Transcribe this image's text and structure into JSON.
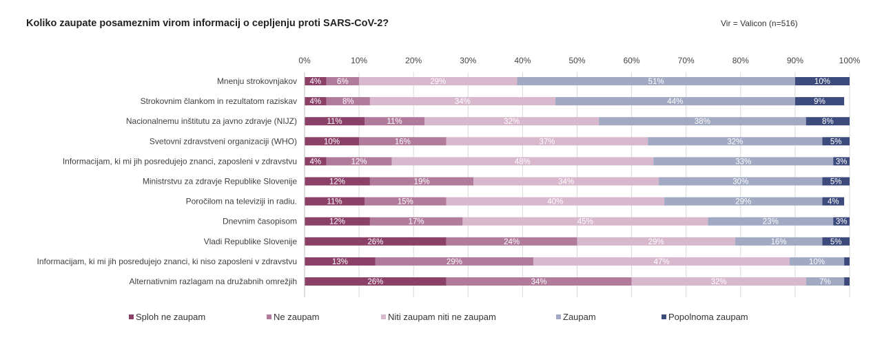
{
  "chart_data": {
    "type": "bar",
    "orientation": "horizontal-stacked-100",
    "title": "Koliko zaupate posameznim virom informacij o cepljenju proti SARS-CoV-2?",
    "source": "Vir = Valicon (n=516)",
    "xlim": [
      0,
      100
    ],
    "ticks": [
      "0%",
      "10%",
      "20%",
      "30%",
      "40%",
      "50%",
      "60%",
      "70%",
      "80%",
      "90%",
      "100%"
    ],
    "categories": [
      "Mnenju strokovnjakov",
      "Strokovnim člankom in rezultatom raziskav",
      "Nacionalnemu inštitutu za javno zdravje (NIJZ)",
      "Svetovni zdravstveni organizaciji (WHO)",
      "Informacijam, ki mi jih posredujejo znanci, zaposleni v zdravstvu",
      "Ministrstvu za zdravje Republike Slovenije",
      "Poročilom na televiziji in radiu.",
      "Dnevnim časopisom",
      "Vladi Republike Slovenije",
      "Informacijam, ki mi jih posredujejo znanci, ki niso zaposleni v zdravstvu",
      "Alternativnim razlagam na družabnih omrežjih"
    ],
    "series": [
      {
        "name": "Sploh ne zaupam",
        "color": "#8b4068",
        "values": [
          4,
          4,
          11,
          10,
          4,
          12,
          11,
          12,
          26,
          13,
          26
        ]
      },
      {
        "name": "Ne zaupam",
        "color": "#b17c9c",
        "values": [
          6,
          8,
          11,
          16,
          12,
          19,
          15,
          17,
          24,
          29,
          34
        ]
      },
      {
        "name": "Niti zaupam niti ne zaupam",
        "color": "#d8b8cc",
        "values": [
          29,
          34,
          32,
          37,
          48,
          34,
          40,
          45,
          29,
          47,
          32
        ]
      },
      {
        "name": "Zaupam",
        "color": "#a2a9c2",
        "values": [
          51,
          44,
          38,
          32,
          33,
          30,
          29,
          23,
          16,
          10,
          7
        ]
      },
      {
        "name": "Popolnoma zaupam",
        "color": "#3c4a7c",
        "values": [
          10,
          9,
          8,
          5,
          3,
          5,
          4,
          3,
          5,
          1,
          1
        ]
      }
    ],
    "labels": [
      [
        "4%",
        "6%",
        "29%",
        "51%",
        "10%"
      ],
      [
        "4%",
        "8%",
        "34%",
        "44%",
        "9%"
      ],
      [
        "11%",
        "11%",
        "32%",
        "38%",
        "8%"
      ],
      [
        "10%",
        "16%",
        "37%",
        "32%",
        "5%"
      ],
      [
        "4%",
        "12%",
        "48%",
        "33%",
        "3%"
      ],
      [
        "12%",
        "19%",
        "34%",
        "30%",
        "5%"
      ],
      [
        "11%",
        "15%",
        "40%",
        "29%",
        "4%"
      ],
      [
        "12%",
        "17%",
        "45%",
        "23%",
        "3%"
      ],
      [
        "26%",
        "24%",
        "29%",
        "16%",
        "5%"
      ],
      [
        "13%",
        "29%",
        "47%",
        "10%",
        ""
      ],
      [
        "26%",
        "34%",
        "32%",
        "7%",
        ""
      ]
    ],
    "legend_position": "bottom",
    "grid": true
  }
}
